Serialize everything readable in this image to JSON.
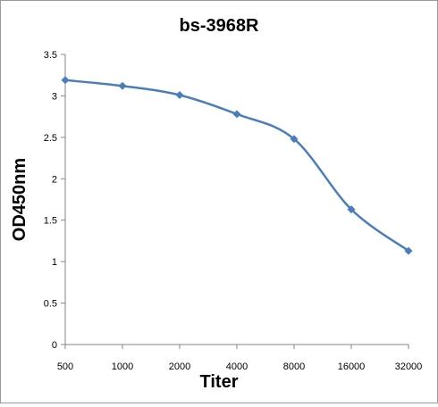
{
  "chart_data": {
    "type": "line",
    "title": "bs-3968R",
    "xlabel": "Titer",
    "ylabel": "OD450nm",
    "categories": [
      "500",
      "1000",
      "2000",
      "4000",
      "8000",
      "16000",
      "32000"
    ],
    "series": [
      {
        "values": [
          3.19,
          3.12,
          3.01,
          2.78,
          2.48,
          1.63,
          1.13
        ],
        "color": "#4a7ebb"
      }
    ],
    "ylim": [
      0,
      3.5
    ],
    "yticks": [
      "0",
      "0.5",
      "1",
      "1.5",
      "2",
      "2.5",
      "3",
      "3.5"
    ],
    "grid": false,
    "legend": "none",
    "marker": "diamond"
  }
}
